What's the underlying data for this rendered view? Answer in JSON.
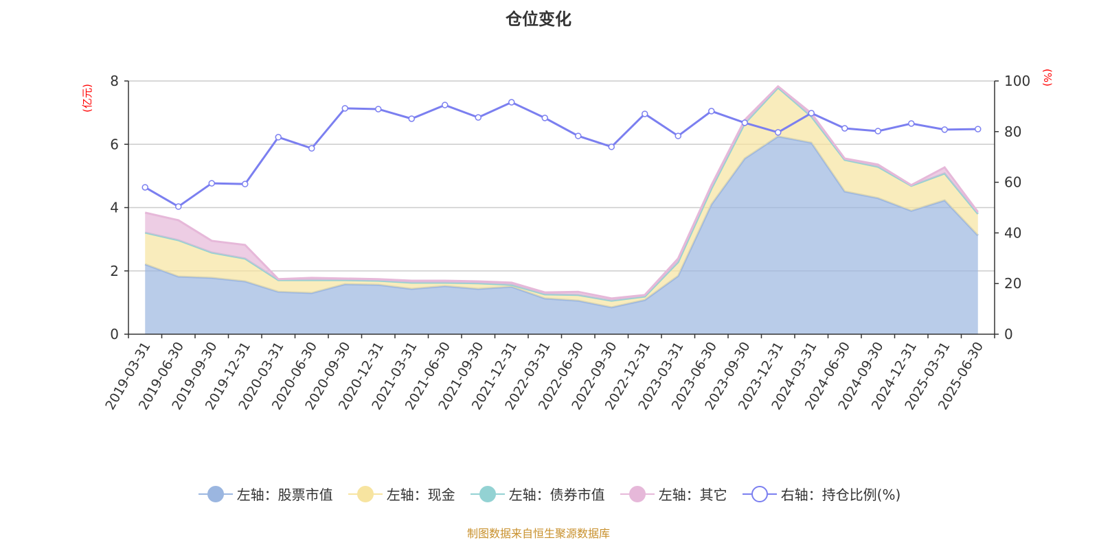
{
  "title": "仓位变化",
  "footer": "制图数据来自恒生聚源数据库",
  "chart_data": {
    "type": "area",
    "stacked": true,
    "title": "仓位变化",
    "categories": [
      "2019-03-31",
      "2019-06-30",
      "2019-09-30",
      "2019-12-31",
      "2020-03-31",
      "2020-06-30",
      "2020-09-30",
      "2020-12-31",
      "2021-03-31",
      "2021-06-30",
      "2021-09-30",
      "2021-12-31",
      "2022-03-31",
      "2022-06-30",
      "2022-09-30",
      "2022-12-31",
      "2023-03-31",
      "2023-06-30",
      "2023-09-30",
      "2023-12-31",
      "2024-03-31",
      "2024-06-30",
      "2024-09-30",
      "2024-12-31",
      "2025-03-31",
      "2025-06-30"
    ],
    "left_axis": {
      "label": "(亿元)",
      "ylim": [
        0,
        8
      ],
      "ticks": [
        0,
        2,
        4,
        6,
        8
      ]
    },
    "right_axis": {
      "label": "(%)",
      "ylim": [
        0,
        100
      ],
      "ticks": [
        0,
        20,
        40,
        60,
        80,
        100
      ]
    },
    "grid": true,
    "legend_position": "bottom",
    "series": [
      {
        "name": "左轴：股票市值",
        "axis": "left",
        "color": "#9bb6e0",
        "values": [
          2.21,
          1.82,
          1.78,
          1.67,
          1.34,
          1.3,
          1.58,
          1.56,
          1.43,
          1.52,
          1.43,
          1.5,
          1.13,
          1.06,
          0.85,
          1.08,
          1.84,
          4.1,
          5.55,
          6.25,
          6.05,
          4.51,
          4.3,
          3.9,
          4.23,
          3.12
        ]
      },
      {
        "name": "左轴：现金",
        "axis": "left",
        "color": "#f7e4a0",
        "values": [
          1.0,
          1.15,
          0.8,
          0.72,
          0.37,
          0.41,
          0.13,
          0.13,
          0.2,
          0.11,
          0.18,
          0.06,
          0.13,
          0.18,
          0.21,
          0.11,
          0.44,
          0.5,
          1.11,
          1.54,
          0.83,
          1.0,
          0.99,
          0.79,
          0.85,
          0.68
        ]
      },
      {
        "name": "左轴：债券市值",
        "axis": "left",
        "color": "#93d2d3",
        "values": [
          0,
          0,
          0,
          0,
          0,
          0,
          0,
          0,
          0,
          0,
          0,
          0,
          0,
          0,
          0,
          0,
          0,
          0,
          0,
          0,
          0,
          0,
          0,
          0,
          0,
          0
        ]
      },
      {
        "name": "左轴：其它",
        "axis": "left",
        "color": "#e6b8d9",
        "values": [
          0.63,
          0.63,
          0.37,
          0.43,
          0.03,
          0.07,
          0.05,
          0.05,
          0.06,
          0.06,
          0.06,
          0.07,
          0.06,
          0.1,
          0.07,
          0.05,
          0.11,
          0.11,
          0.11,
          0.04,
          0.1,
          0.04,
          0.07,
          0.02,
          0.19,
          0.06
        ]
      },
      {
        "name": "右轴：持仓比例(%)",
        "axis": "right",
        "type": "line",
        "color": "#7b7ff0",
        "values": [
          58.0,
          50.4,
          59.6,
          59.3,
          77.8,
          73.4,
          89.2,
          88.9,
          85.1,
          90.5,
          85.6,
          91.6,
          85.4,
          78.3,
          74.0,
          87.0,
          78.3,
          88.1,
          83.5,
          79.7,
          87.3,
          81.3,
          80.2,
          83.2,
          80.8,
          81.0
        ]
      }
    ]
  }
}
